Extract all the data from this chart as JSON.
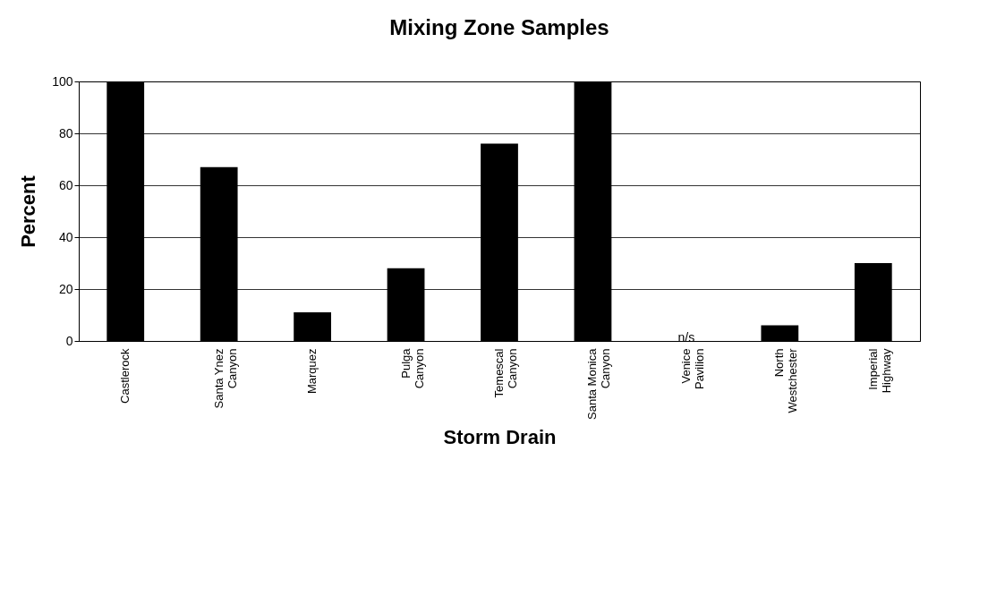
{
  "chart_data": {
    "type": "bar",
    "title": "Mixing Zone Samples",
    "xlabel": "Storm Drain",
    "ylabel": "Percent",
    "categories": [
      "Castlerock",
      "Santa Ynez\nCanyon",
      "Marquez",
      "Pulga\nCanyon",
      "Temescal\nCanyon",
      "Santa Monica\nCanyon",
      "Venice\nPavilion",
      "North\nWestchester",
      "Imperial\nHighway"
    ],
    "values": [
      100,
      67,
      11,
      28,
      76,
      100,
      null,
      6,
      30
    ],
    "color": "#000000",
    "ylim": [
      0,
      100
    ],
    "yticks": [
      0,
      20,
      40,
      60,
      80,
      100
    ],
    "grid": "y",
    "annotations": [
      "n/s"
    ]
  }
}
